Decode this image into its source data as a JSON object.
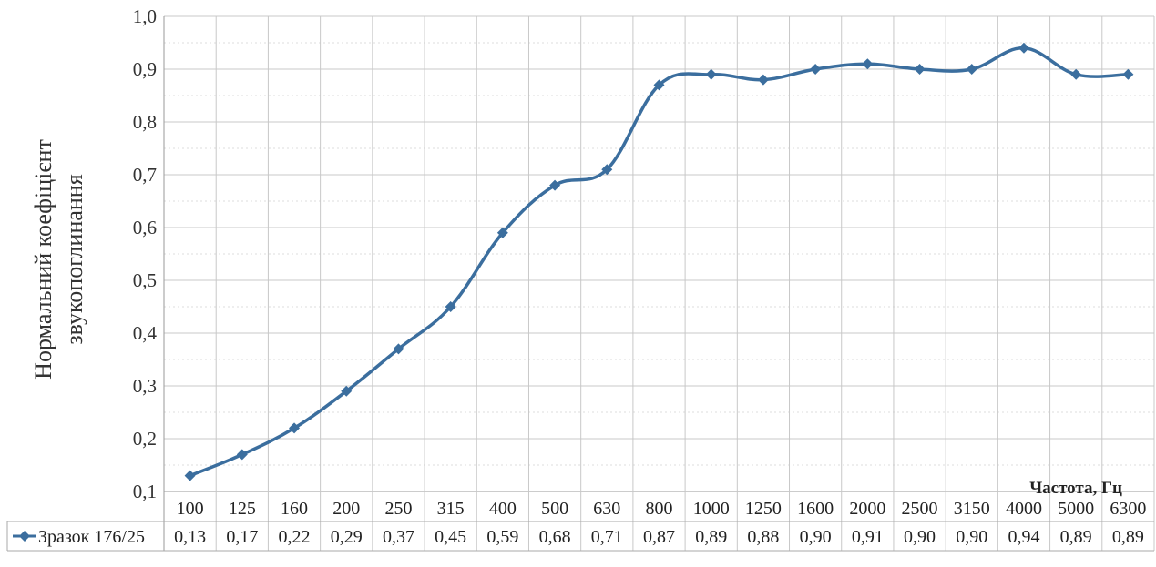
{
  "colors": {
    "series": "#3b6e9e",
    "grid": "#c8c8c8"
  },
  "chart_data": {
    "type": "line",
    "ylabel_lines": [
      "Нормальний коефіцієнт",
      "звукопоглинання"
    ],
    "xlabel": "Частота, Гц",
    "ylim": [
      0.1,
      1.0
    ],
    "yticks": [
      "0,1",
      "0,2",
      "0,3",
      "0,4",
      "0,5",
      "0,6",
      "0,7",
      "0,8",
      "0,9",
      "1,0"
    ],
    "grid": true,
    "legend": "data-table",
    "categories": [
      "100",
      "125",
      "160",
      "200",
      "250",
      "315",
      "400",
      "500",
      "630",
      "800",
      "1000",
      "1250",
      "1600",
      "2000",
      "2500",
      "3150",
      "4000",
      "5000",
      "6300"
    ],
    "series": [
      {
        "name": "Зразок 176/25",
        "marker": "diamond",
        "values": [
          0.13,
          0.17,
          0.22,
          0.29,
          0.37,
          0.45,
          0.59,
          0.68,
          0.71,
          0.87,
          0.89,
          0.88,
          0.9,
          0.91,
          0.9,
          0.9,
          0.94,
          0.89,
          0.89
        ],
        "labels": [
          "0,13",
          "0,17",
          "0,22",
          "0,29",
          "0,37",
          "0,45",
          "0,59",
          "0,68",
          "0,71",
          "0,87",
          "0,89",
          "0,88",
          "0,90",
          "0,91",
          "0,90",
          "0,90",
          "0,94",
          "0,89",
          "0,89"
        ]
      }
    ]
  }
}
